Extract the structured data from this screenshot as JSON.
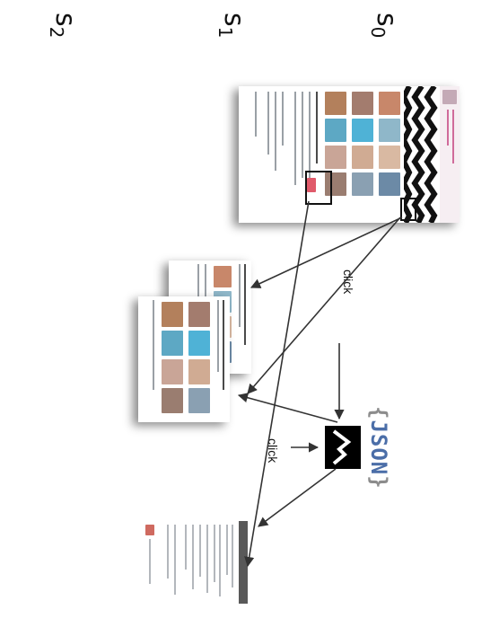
{
  "states": [
    {
      "base": "s",
      "sub": "0"
    },
    {
      "base": "s",
      "sub": "1"
    },
    {
      "base": "s",
      "sub": "2"
    }
  ],
  "edges": {
    "click_label_upper": "click",
    "click_label_lower": "click"
  },
  "model": {
    "label_open": "{",
    "label_text": "JSON",
    "label_close": "}",
    "icon": "image-model-icon"
  },
  "colors": {
    "banner_chevron": "#111111",
    "json_text": "#4b6ea8",
    "arrow": "#333333"
  }
}
